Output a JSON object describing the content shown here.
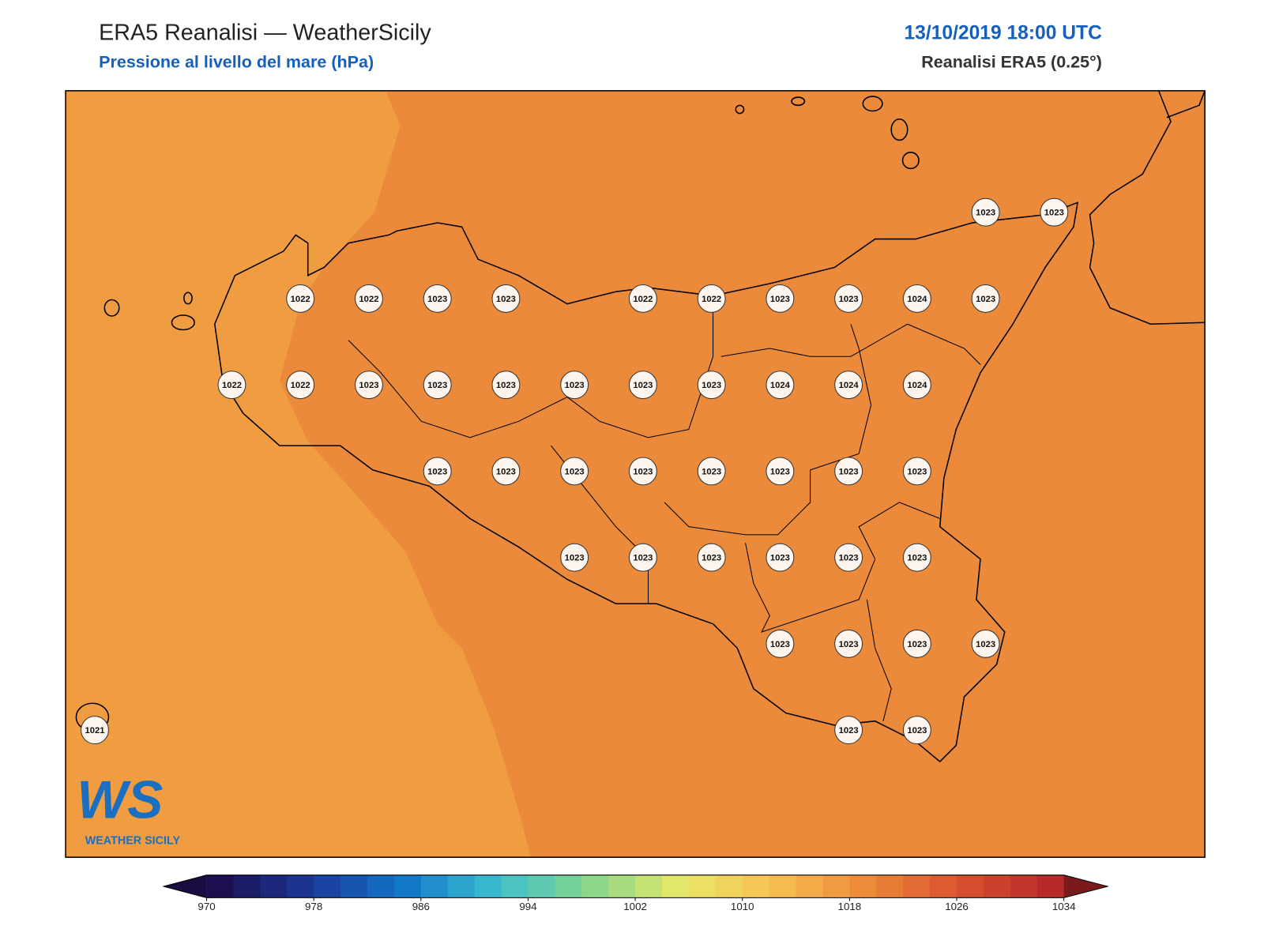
{
  "header": {
    "title": "ERA5 Reanalisi — WeatherSicily",
    "subtitle": "Pressione al livello del mare (hPa)",
    "datetime": "13/10/2019 18:00 UTC",
    "source": "Reanalisi ERA5 (0.25°)"
  },
  "pressure_grid": [
    [
      null,
      null,
      null,
      null,
      null,
      null,
      null,
      null,
      null,
      null,
      null,
      null,
      null,
      1023,
      1023
    ],
    [
      null,
      null,
      null,
      1022,
      1022,
      1023,
      1023,
      null,
      1022,
      1022,
      1023,
      1023,
      1024,
      1023,
      null
    ],
    [
      null,
      null,
      1022,
      1022,
      1023,
      1023,
      1023,
      1023,
      1023,
      1023,
      1024,
      1024,
      1024,
      null,
      null
    ],
    [
      null,
      null,
      null,
      null,
      null,
      1023,
      1023,
      1023,
      1023,
      1023,
      1023,
      1023,
      1023,
      null,
      null
    ],
    [
      null,
      null,
      null,
      null,
      null,
      null,
      null,
      1023,
      1023,
      1023,
      1023,
      1023,
      1023,
      null,
      null
    ],
    [
      null,
      null,
      null,
      null,
      null,
      null,
      null,
      null,
      null,
      null,
      1023,
      1023,
      1023,
      1023,
      null
    ],
    [
      1021,
      null,
      null,
      null,
      null,
      null,
      null,
      null,
      null,
      null,
      null,
      1023,
      1023,
      null,
      null
    ]
  ],
  "colorbar": {
    "range": [
      970,
      1034
    ],
    "step": 2,
    "ticks": [
      970,
      978,
      986,
      994,
      1002,
      1010,
      1018,
      1026,
      1034
    ],
    "palette": [
      "#1d0f4f",
      "#1a3a9a",
      "#1177c8",
      "#3bbfcf",
      "#86d68c",
      "#e8e869",
      "#f7bf52",
      "#ec8a38",
      "#d9522e",
      "#b82a2a"
    ],
    "under_color": "#1a0c40",
    "over_color": "#7a1a1a"
  },
  "logo": {
    "mark": "WS",
    "text": "WEATHER SICILY"
  }
}
